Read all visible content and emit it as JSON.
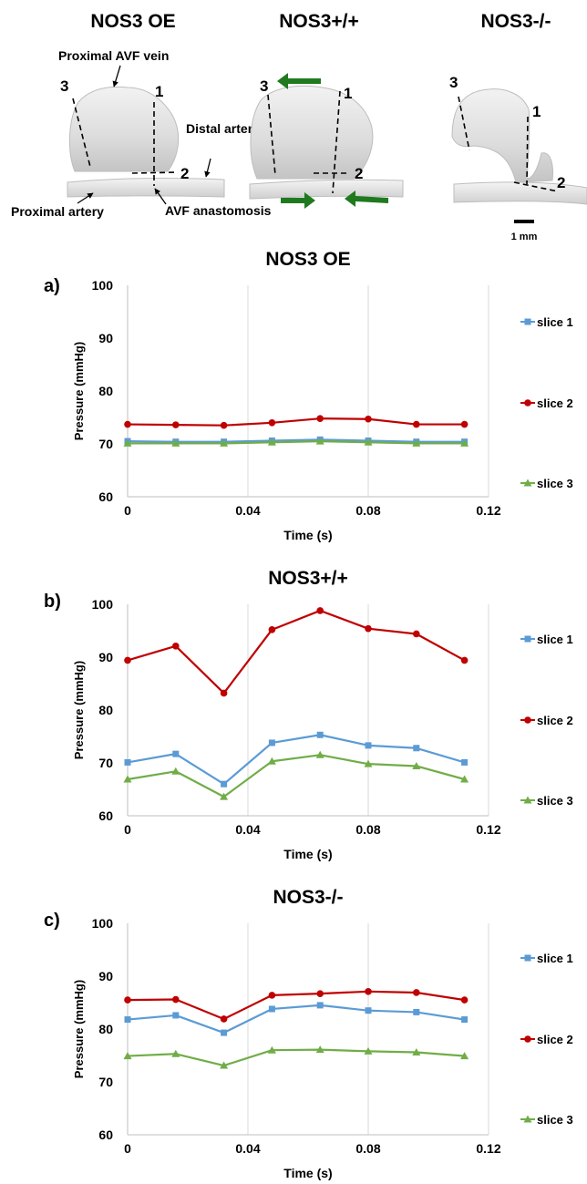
{
  "top_panel": {
    "groups": [
      {
        "title": "NOS3 OE",
        "labels": [
          "Proximal AVF vein",
          "Distal artery",
          "Proximal artery",
          "AVF anastomosis"
        ],
        "slice_numbers": [
          "1",
          "2",
          "3"
        ]
      },
      {
        "title": "NOS3+/+",
        "slice_numbers": [
          "1",
          "2",
          "3"
        ]
      },
      {
        "title": "NOS3-/-",
        "slice_numbers": [
          "1",
          "2",
          "3"
        ],
        "scale_bar": "1 mm"
      }
    ]
  },
  "chart_data": [
    {
      "panel_label": "a)",
      "title": "NOS3 OE",
      "type": "line",
      "xlabel": "Time (s)",
      "ylabel": "Pressure (mmHg)",
      "x": [
        0,
        0.016,
        0.032,
        0.048,
        0.064,
        0.08,
        0.096,
        0.112
      ],
      "xticks": [
        "0",
        "0.04",
        "0.08",
        "0.12"
      ],
      "yticks": [
        "100",
        "90",
        "80",
        "70",
        "60"
      ],
      "xlim": [
        0,
        0.12
      ],
      "ylim": [
        60,
        100
      ],
      "grid": "vertical",
      "legend": "right",
      "series": [
        {
          "name": "slice 1",
          "color": "#5B9BD5",
          "marker": "square",
          "values": [
            70.5,
            70.4,
            70.4,
            70.6,
            70.8,
            70.6,
            70.4,
            70.4
          ]
        },
        {
          "name": "slice 2",
          "color": "#C00000",
          "marker": "circle",
          "values": [
            73.7,
            73.6,
            73.5,
            74.0,
            74.8,
            74.7,
            73.7,
            73.7
          ]
        },
        {
          "name": "slice 3",
          "color": "#70AD47",
          "marker": "triangle",
          "values": [
            70.1,
            70.1,
            70.1,
            70.3,
            70.5,
            70.3,
            70.1,
            70.1
          ]
        }
      ]
    },
    {
      "panel_label": "b)",
      "title": "NOS3+/+",
      "type": "line",
      "xlabel": "Time (s)",
      "ylabel": "Pressure (mmHg)",
      "x": [
        0,
        0.016,
        0.032,
        0.048,
        0.064,
        0.08,
        0.096,
        0.112
      ],
      "xticks": [
        "0",
        "0.04",
        "0.08",
        "0.12"
      ],
      "yticks": [
        "100",
        "90",
        "80",
        "70",
        "60"
      ],
      "xlim": [
        0,
        0.12
      ],
      "ylim": [
        60,
        100
      ],
      "grid": "vertical",
      "legend": "right",
      "series": [
        {
          "name": "slice 1",
          "color": "#5B9BD5",
          "marker": "square",
          "values": [
            70.1,
            71.7,
            66.0,
            73.8,
            75.3,
            73.3,
            72.8,
            70.1
          ]
        },
        {
          "name": "slice 2",
          "color": "#C00000",
          "marker": "circle",
          "values": [
            89.4,
            92.1,
            83.2,
            95.2,
            98.8,
            95.4,
            94.4,
            89.4
          ]
        },
        {
          "name": "slice 3",
          "color": "#70AD47",
          "marker": "triangle",
          "values": [
            66.9,
            68.4,
            63.6,
            70.3,
            71.5,
            69.8,
            69.4,
            66.9
          ]
        }
      ]
    },
    {
      "panel_label": "c)",
      "title": "NOS3-/-",
      "type": "line",
      "xlabel": "Time (s)",
      "ylabel": "Pressure (mmHg)",
      "x": [
        0,
        0.016,
        0.032,
        0.048,
        0.064,
        0.08,
        0.096,
        0.112
      ],
      "xticks": [
        "0",
        "0.04",
        "0.08",
        "0.12"
      ],
      "yticks": [
        "100",
        "90",
        "80",
        "70",
        "60"
      ],
      "xlim": [
        0,
        0.12
      ],
      "ylim": [
        60,
        100
      ],
      "grid": "vertical",
      "legend": "right",
      "series": [
        {
          "name": "slice 1",
          "color": "#5B9BD5",
          "marker": "square",
          "values": [
            81.8,
            82.6,
            79.3,
            83.8,
            84.5,
            83.5,
            83.2,
            81.8
          ]
        },
        {
          "name": "slice 2",
          "color": "#C00000",
          "marker": "circle",
          "values": [
            85.5,
            85.6,
            81.9,
            86.4,
            86.7,
            87.1,
            86.9,
            85.5
          ]
        },
        {
          "name": "slice 3",
          "color": "#70AD47",
          "marker": "triangle",
          "values": [
            74.9,
            75.3,
            73.1,
            76.0,
            76.1,
            75.8,
            75.6,
            74.9
          ]
        }
      ]
    }
  ]
}
